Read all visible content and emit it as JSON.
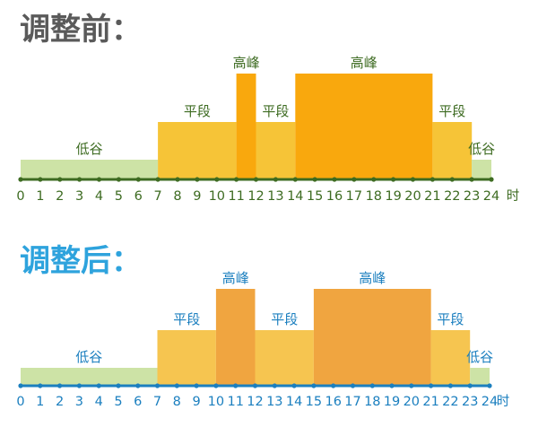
{
  "chart_data": [
    {
      "type": "bar",
      "title": "调整前：",
      "x_unit": "时",
      "x_ticks": [
        "0",
        "1",
        "2",
        "3",
        "4",
        "5",
        "6",
        "7",
        "8",
        "9",
        "10",
        "11",
        "12",
        "13",
        "14",
        "15",
        "16",
        "17",
        "18",
        "19",
        "20",
        "21",
        "22",
        "23",
        "24"
      ],
      "segments": [
        {
          "start": 0,
          "end": 7,
          "label": "低谷",
          "level": "valley"
        },
        {
          "start": 7,
          "end": 11,
          "label": "平段",
          "level": "flat"
        },
        {
          "start": 11,
          "end": 12,
          "label": "高峰",
          "level": "peak"
        },
        {
          "start": 12,
          "end": 14,
          "label": "平段",
          "level": "flat"
        },
        {
          "start": 14,
          "end": 21,
          "label": "高峰",
          "level": "peak"
        },
        {
          "start": 21,
          "end": 23,
          "label": "平段",
          "level": "flat"
        },
        {
          "start": 23,
          "end": 24,
          "label": "低谷",
          "level": "valley"
        }
      ]
    },
    {
      "type": "bar",
      "title": "调整后：",
      "x_unit": "时",
      "x_ticks": [
        "0",
        "1",
        "2",
        "3",
        "4",
        "5",
        "6",
        "7",
        "8",
        "9",
        "10",
        "11",
        "12",
        "13",
        "14",
        "15",
        "16",
        "17",
        "18",
        "19",
        "20",
        "21",
        "22",
        "23",
        "24"
      ],
      "segments": [
        {
          "start": 0,
          "end": 7,
          "label": "低谷",
          "level": "valley"
        },
        {
          "start": 7,
          "end": 10,
          "label": "平段",
          "level": "flat"
        },
        {
          "start": 10,
          "end": 12,
          "label": "高峰",
          "level": "peak"
        },
        {
          "start": 12,
          "end": 15,
          "label": "平段",
          "level": "flat"
        },
        {
          "start": 15,
          "end": 21,
          "label": "高峰",
          "level": "peak"
        },
        {
          "start": 21,
          "end": 23,
          "label": "平段",
          "level": "flat"
        },
        {
          "start": 23,
          "end": 24,
          "label": "低谷",
          "level": "valley"
        }
      ]
    }
  ],
  "colors": {
    "before_title": "#5a5a5a",
    "after_title": "#2ea3dd",
    "before_axis": "#3d6b21",
    "after_axis": "#1b7fbf",
    "before_label": "#3d6b21",
    "after_label": "#1b7fbf",
    "before_valley": "#cde3a6",
    "before_flat": "#f6c437",
    "before_peak": "#f9a80d",
    "after_valley": "#cde3a6",
    "after_flat": "#f6c550",
    "after_peak": "#f0a540"
  }
}
